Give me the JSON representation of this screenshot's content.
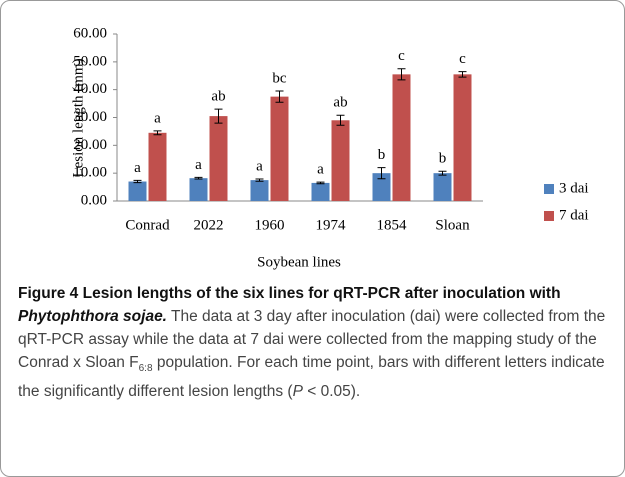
{
  "chart_data": {
    "type": "bar",
    "ylabel": "Lesion length (mm)",
    "xlabel": "Soybean lines",
    "categories": [
      "Conrad",
      "2022",
      "1960",
      "1974",
      "1854",
      "Sloan"
    ],
    "series": [
      {
        "name": "3 dai",
        "color": "#4f81bd",
        "values": [
          7.0,
          8.2,
          7.5,
          6.5,
          10.0,
          10.0
        ],
        "errors": [
          0.4,
          0.3,
          0.4,
          0.3,
          2.0,
          0.7
        ],
        "letters": [
          "a",
          "a",
          "a",
          "a",
          "b",
          "b"
        ]
      },
      {
        "name": "7 dai",
        "color": "#c0504d",
        "values": [
          24.5,
          30.5,
          37.5,
          29.0,
          45.5,
          45.5
        ],
        "errors": [
          0.7,
          2.5,
          2.0,
          1.8,
          2.0,
          1.0
        ],
        "letters": [
          "a",
          "ab",
          "bc",
          "ab",
          "c",
          "c"
        ]
      }
    ],
    "ylim": [
      0,
      60
    ],
    "yticks": [
      {
        "value": 0,
        "label": "0.00"
      },
      {
        "value": 10,
        "label": "10.00"
      },
      {
        "value": 20,
        "label": "20.00"
      },
      {
        "value": 30,
        "label": "30.00"
      },
      {
        "value": 40,
        "label": "40.00"
      },
      {
        "value": 50,
        "label": "50.00"
      },
      {
        "value": 60,
        "label": "60.00"
      }
    ],
    "legend": "right"
  },
  "caption": {
    "label": "Figure 4",
    "title": "Lesion lengths of the six lines for qRT-PCR after inoculation with",
    "species": "Phytophthora sojae.",
    "text1": "The data at 3 day after inoculation (dai) were collected from the qRT-PCR assay while the data at 7 dai were collected from the mapping study of the Conrad x Sloan F",
    "subscript": "6:8",
    "text2": " population. For each time point, bars with different letters indicate the significantly different lesion lengths (",
    "p": "P",
    "text3": " < 0.05)."
  }
}
